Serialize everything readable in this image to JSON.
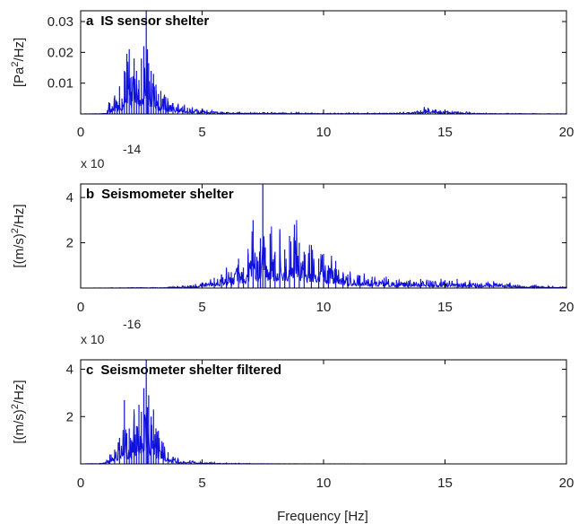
{
  "chart_data": [
    {
      "type": "line",
      "letter": "a",
      "title": "IS sensor shelter",
      "ylabel_base": "[Pa",
      "ylabel_sup": "2",
      "ylabel_tail": "/Hz]",
      "multiplier_base": "",
      "multiplier_exp": "",
      "xlim": [
        0,
        20
      ],
      "ylim": [
        0,
        0.0335
      ],
      "x_ticks": [
        "0",
        "5",
        "10",
        "15",
        "20"
      ],
      "y_ticks": [
        {
          "v": 0.01,
          "label": "0.01"
        },
        {
          "v": 0.02,
          "label": "0.02"
        },
        {
          "v": 0.03,
          "label": "0.03"
        }
      ],
      "color": "#1010dd",
      "series": {
        "x": [
          0,
          1.0,
          1.1,
          1.2,
          1.3,
          1.4,
          1.5,
          1.6,
          1.7,
          1.8,
          1.9,
          2.0,
          2.1,
          2.2,
          2.3,
          2.4,
          2.5,
          2.6,
          2.7,
          2.75,
          2.8,
          2.9,
          3.0,
          3.1,
          3.2,
          3.3,
          3.4,
          3.5,
          3.6,
          3.8,
          4.0,
          4.2,
          4.4,
          4.6,
          4.8,
          5.0,
          5.5,
          6.0,
          6.5,
          7.0,
          7.5,
          8.0,
          9.0,
          10.0,
          11.0,
          12.0,
          13.0,
          13.5,
          14.0,
          14.3,
          14.6,
          15.0,
          15.5,
          16.0,
          17.0,
          18.0,
          19.0,
          20.0
        ],
        "y": [
          0,
          0.0002,
          0.0012,
          0.0035,
          0.0025,
          0.006,
          0.004,
          0.009,
          0.005,
          0.014,
          0.0195,
          0.021,
          0.012,
          0.018,
          0.014,
          0.011,
          0.018,
          0.022,
          0.034,
          0.021,
          0.0165,
          0.014,
          0.013,
          0.0095,
          0.0065,
          0.0075,
          0.005,
          0.0055,
          0.004,
          0.0035,
          0.003,
          0.0025,
          0.002,
          0.0022,
          0.0015,
          0.0018,
          0.0008,
          0.0006,
          0.0006,
          0.0005,
          0.0006,
          0.0005,
          0.0004,
          0.0003,
          0.0003,
          0.0003,
          0.0004,
          0.0006,
          0.0012,
          0.002,
          0.0015,
          0.0012,
          0.0008,
          0.0004,
          0.0002,
          0.0002,
          0.0001,
          0.0001
        ]
      }
    },
    {
      "type": "line",
      "letter": "b",
      "title": "Seismometer shelter",
      "ylabel_base": "[(m/s)",
      "ylabel_sup": "2",
      "ylabel_tail": "/Hz]",
      "multiplier_base": "x 10",
      "multiplier_exp": "-14",
      "xlim": [
        0,
        20
      ],
      "ylim": [
        0,
        4.6
      ],
      "x_ticks": [
        "0",
        "5",
        "10",
        "15",
        "20"
      ],
      "y_ticks": [
        {
          "v": 2,
          "label": "2"
        },
        {
          "v": 4,
          "label": "4"
        }
      ],
      "color": "#1010dd",
      "series": {
        "x": [
          0,
          3.5,
          4.0,
          4.5,
          5.0,
          5.5,
          5.8,
          6.0,
          6.2,
          6.5,
          6.7,
          6.9,
          7.1,
          7.3,
          7.4,
          7.5,
          7.6,
          7.8,
          8.0,
          8.2,
          8.4,
          8.6,
          8.8,
          9.0,
          9.2,
          9.5,
          9.8,
          10.0,
          10.2,
          10.5,
          10.8,
          11.0,
          11.5,
          12.0,
          12.5,
          13.0,
          13.5,
          14.0,
          14.5,
          15.0,
          15.5,
          16.0,
          16.5,
          17.0,
          18.0,
          19.0,
          20.0
        ],
        "y": [
          0,
          0.03,
          0.08,
          0.12,
          0.25,
          0.45,
          0.6,
          0.9,
          0.7,
          1.3,
          0.9,
          1.5,
          3.0,
          1.2,
          2.2,
          4.6,
          1.8,
          2.4,
          1.6,
          2.6,
          1.7,
          2.3,
          2.8,
          2.0,
          1.6,
          1.9,
          1.3,
          1.5,
          1.0,
          1.2,
          0.7,
          0.6,
          0.55,
          0.5,
          0.45,
          0.35,
          0.32,
          0.4,
          0.3,
          0.35,
          0.4,
          0.25,
          0.22,
          0.3,
          0.15,
          0.1,
          0.05
        ]
      }
    },
    {
      "type": "line",
      "letter": "c",
      "title": "Seismometer shelter filtered",
      "ylabel_base": "[(m/s)",
      "ylabel_sup": "2",
      "ylabel_tail": "/Hz]",
      "multiplier_base": "x 10",
      "multiplier_exp": "-16",
      "xlim": [
        0,
        20
      ],
      "ylim": [
        0,
        4.4
      ],
      "x_ticks": [
        "0",
        "5",
        "10",
        "15",
        "20"
      ],
      "y_ticks": [
        {
          "v": 2,
          "label": "2"
        },
        {
          "v": 4,
          "label": "4"
        }
      ],
      "color": "#1010dd",
      "series": {
        "x": [
          0,
          1.0,
          1.2,
          1.4,
          1.6,
          1.8,
          1.9,
          2.0,
          2.1,
          2.2,
          2.3,
          2.4,
          2.5,
          2.6,
          2.7,
          2.75,
          2.8,
          2.9,
          3.0,
          3.1,
          3.2,
          3.4,
          3.6,
          3.8,
          4.0,
          4.5,
          5.0,
          6.0,
          8.0,
          10.0,
          15.0,
          20.0
        ],
        "y": [
          0,
          0.05,
          0.4,
          0.6,
          1.1,
          2.7,
          1.3,
          1.5,
          1.0,
          2.1,
          1.6,
          2.5,
          2.2,
          3.2,
          4.4,
          2.4,
          2.9,
          2.0,
          2.3,
          1.5,
          1.4,
          0.9,
          0.5,
          0.3,
          0.2,
          0.15,
          0.08,
          0.03,
          0.01,
          0.005,
          0.0,
          0.0
        ]
      }
    }
  ],
  "xlabel": "Frequency [Hz]"
}
